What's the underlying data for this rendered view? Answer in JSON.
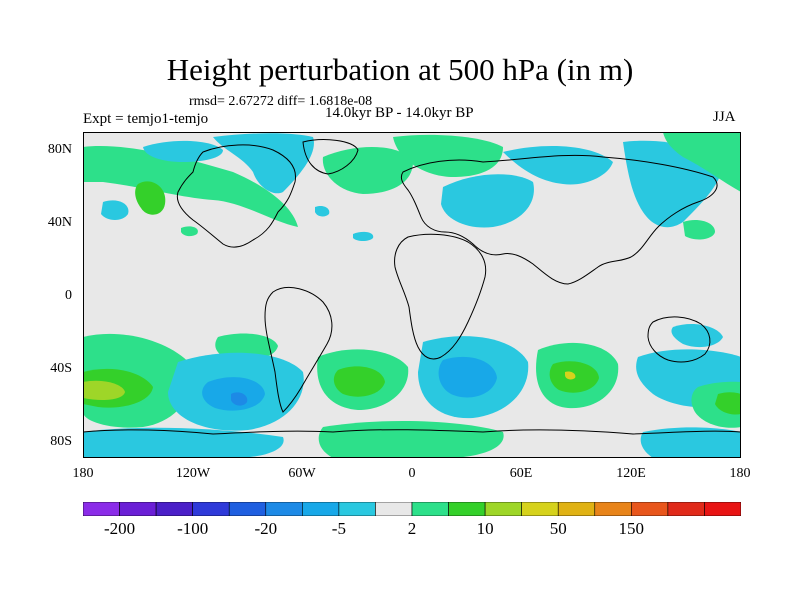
{
  "title": "Height perturbation at 500 hPa (in m)",
  "stats": "rmsd= 2.67272 diff= 1.6818e-08",
  "left_label": "Expt = temjo1-temjo",
  "center_label": "14.0kyr BP - 14.0kyr BP",
  "right_label": "JJA",
  "lat_ticks": [
    "80N",
    "40N",
    "0",
    "40S",
    "80S"
  ],
  "lon_ticks": [
    "180",
    "120W",
    "60W",
    "0",
    "60E",
    "120E",
    "180"
  ],
  "colorbar": {
    "colors": [
      "#8b2ce8",
      "#6b1fd6",
      "#4b1fc8",
      "#2f3ad9",
      "#1f5fe0",
      "#1d8ae6",
      "#18a8e8",
      "#2ac8e0",
      "#e8e8e8",
      "#2de08a",
      "#34d02a",
      "#9ed628",
      "#d6d21c",
      "#e0b214",
      "#e8841a",
      "#e8561c",
      "#e02a1a",
      "#e81414"
    ],
    "labels": [
      "-200",
      "-100",
      "-20",
      "-5",
      "2",
      "10",
      "50",
      "150"
    ],
    "label_boundaries": [
      1,
      3,
      5,
      7,
      9,
      11,
      13,
      15
    ]
  },
  "map_colors": {
    "neutral": "#e8e8e8",
    "pos1": "#2de08a",
    "pos2": "#34d02a",
    "pos3": "#9ed628",
    "pos4": "#d6d21c",
    "neg1": "#2ac8e0",
    "neg2": "#18a8e8",
    "neg3": "#1d8ae6",
    "coast": "#000000"
  }
}
